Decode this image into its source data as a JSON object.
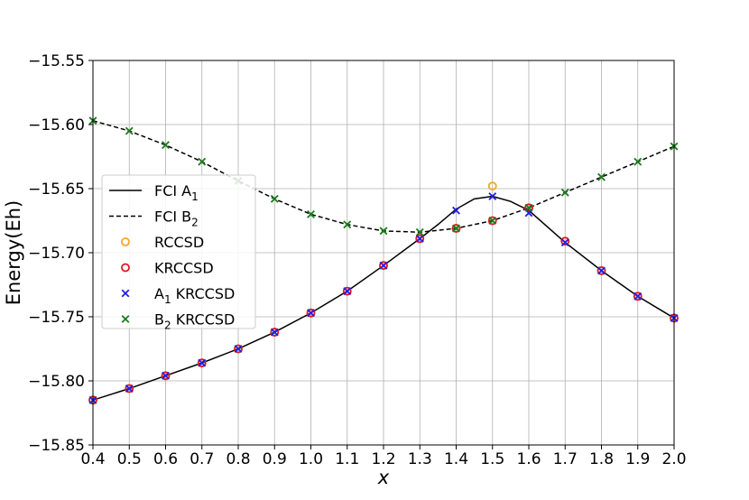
{
  "chart_data": {
    "type": "line",
    "xlabel": "x",
    "ylabel": "Energy(Eh)",
    "xlim": [
      0.4,
      2.0
    ],
    "ylim": [
      -15.85,
      -15.55
    ],
    "xticks": [
      "0.4",
      "0.5",
      "0.6",
      "0.7",
      "0.8",
      "0.9",
      "1.0",
      "1.1",
      "1.2",
      "1.3",
      "1.4",
      "1.5",
      "1.6",
      "1.7",
      "1.8",
      "1.9",
      "2.0"
    ],
    "yticks": [
      "−15.85",
      "−15.80",
      "−15.75",
      "−15.70",
      "−15.65",
      "−15.60",
      "−15.55"
    ],
    "grid": true,
    "legend_position": "center-left",
    "series": [
      {
        "name": "FCI A",
        "name_sub": "1",
        "kind": "line",
        "style": "solid",
        "color": "#000000",
        "x": [
          0.4,
          0.5,
          0.6,
          0.7,
          0.8,
          0.9,
          1.0,
          1.1,
          1.2,
          1.3,
          1.35,
          1.4,
          1.45,
          1.5,
          1.55,
          1.6,
          1.7,
          1.8,
          1.9,
          2.0
        ],
        "y": [
          -15.815,
          -15.806,
          -15.796,
          -15.786,
          -15.775,
          -15.762,
          -15.747,
          -15.73,
          -15.71,
          -15.689,
          -15.678,
          -15.666,
          -15.658,
          -15.656,
          -15.66,
          -15.667,
          -15.692,
          -15.714,
          -15.734,
          -15.751
        ]
      },
      {
        "name": "FCI B",
        "name_sub": "2",
        "kind": "line",
        "style": "dashed",
        "color": "#000000",
        "x": [
          0.4,
          0.5,
          0.6,
          0.7,
          0.8,
          0.9,
          1.0,
          1.1,
          1.2,
          1.3,
          1.4,
          1.5,
          1.6,
          1.7,
          1.8,
          1.9,
          2.0
        ],
        "y": [
          -15.597,
          -15.605,
          -15.616,
          -15.629,
          -15.644,
          -15.658,
          -15.67,
          -15.678,
          -15.683,
          -15.684,
          -15.681,
          -15.675,
          -15.665,
          -15.653,
          -15.641,
          -15.629,
          -15.617
        ]
      },
      {
        "name": "RCCSD",
        "kind": "circle",
        "color": "#f5a623",
        "x": [
          0.4,
          0.5,
          0.6,
          0.7,
          0.8,
          0.9,
          1.0,
          1.1,
          1.2,
          1.3,
          1.4,
          1.5,
          1.6,
          1.7,
          1.8,
          1.9,
          2.0
        ],
        "y": [
          -15.815,
          -15.806,
          -15.796,
          -15.786,
          -15.775,
          -15.762,
          -15.747,
          -15.73,
          -15.71,
          -15.689,
          -15.681,
          -15.648,
          -15.665,
          -15.691,
          -15.714,
          -15.734,
          -15.751
        ]
      },
      {
        "name": "KRCCSD",
        "kind": "circle",
        "color": "#e8141e",
        "x": [
          0.4,
          0.5,
          0.6,
          0.7,
          0.8,
          0.9,
          1.0,
          1.1,
          1.2,
          1.3,
          1.4,
          1.5,
          1.6,
          1.7,
          1.8,
          1.9,
          2.0
        ],
        "y": [
          -15.815,
          -15.806,
          -15.796,
          -15.786,
          -15.775,
          -15.762,
          -15.747,
          -15.73,
          -15.71,
          -15.689,
          -15.681,
          -15.675,
          -15.665,
          -15.691,
          -15.714,
          -15.734,
          -15.751
        ]
      },
      {
        "name": "A",
        "name_sub": "1",
        "name_suffix": " KRCCSD",
        "kind": "x",
        "color": "#1f1fe8",
        "x": [
          0.4,
          0.5,
          0.6,
          0.7,
          0.8,
          0.9,
          1.0,
          1.1,
          1.2,
          1.3,
          1.4,
          1.5,
          1.6,
          1.7,
          1.8,
          1.9,
          2.0
        ],
        "y": [
          -15.815,
          -15.806,
          -15.796,
          -15.786,
          -15.775,
          -15.762,
          -15.747,
          -15.73,
          -15.71,
          -15.689,
          -15.667,
          -15.656,
          -15.669,
          -15.692,
          -15.714,
          -15.734,
          -15.751
        ]
      },
      {
        "name": "B",
        "name_sub": "2",
        "name_suffix": " KRCCSD",
        "kind": "x",
        "color": "#1a7a1a",
        "x": [
          0.4,
          0.5,
          0.6,
          0.7,
          0.8,
          0.9,
          1.0,
          1.1,
          1.2,
          1.3,
          1.4,
          1.5,
          1.6,
          1.7,
          1.8,
          1.9,
          2.0
        ],
        "y": [
          -15.597,
          -15.605,
          -15.616,
          -15.629,
          -15.644,
          -15.658,
          -15.67,
          -15.678,
          -15.683,
          -15.684,
          -15.681,
          -15.675,
          -15.665,
          -15.653,
          -15.641,
          -15.629,
          -15.617
        ]
      }
    ]
  }
}
